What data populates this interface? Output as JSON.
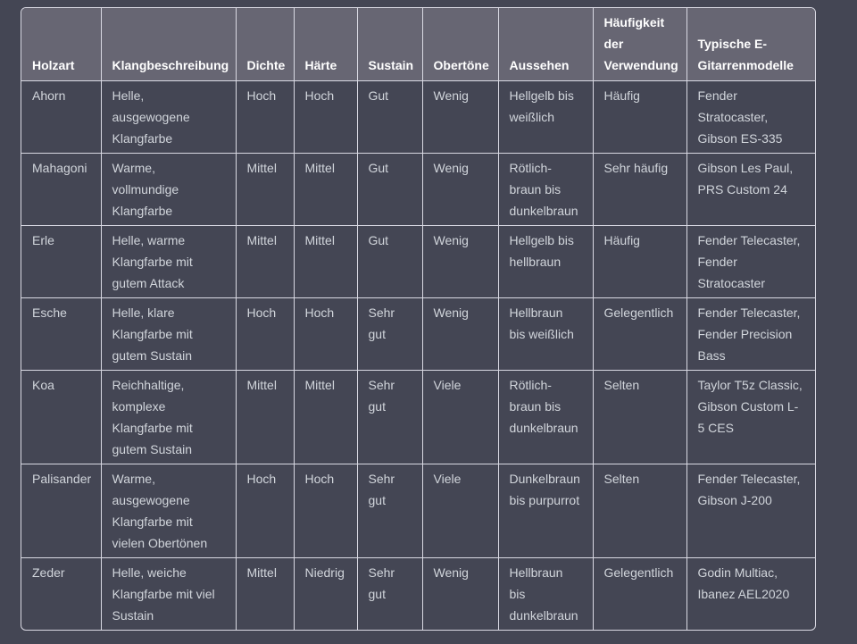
{
  "table": {
    "headers": [
      "Holzart",
      "Klangbeschreibung",
      "Dichte",
      "Härte",
      "Sustain",
      "Obertöne",
      "Aussehen",
      "Häufigkeit der Verwendung",
      "Typische E-Gitarrenmodelle"
    ],
    "rows": [
      [
        "Ahorn",
        "Helle, ausgewogene Klangfarbe",
        "Hoch",
        "Hoch",
        "Gut",
        "Wenig",
        "Hellgelb bis weißlich",
        "Häufig",
        "Fender Stratocaster, Gibson ES-335"
      ],
      [
        "Mahagoni",
        "Warme, vollmundige Klangfarbe",
        "Mittel",
        "Mittel",
        "Gut",
        "Wenig",
        "Rötlich-braun bis dunkelbraun",
        "Sehr häufig",
        "Gibson Les Paul, PRS Custom 24"
      ],
      [
        "Erle",
        "Helle, warme Klangfarbe mit gutem Attack",
        "Mittel",
        "Mittel",
        "Gut",
        "Wenig",
        "Hellgelb bis hellbraun",
        "Häufig",
        "Fender Telecaster, Fender Stratocaster"
      ],
      [
        "Esche",
        "Helle, klare Klangfarbe mit gutem Sustain",
        "Hoch",
        "Hoch",
        "Sehr gut",
        "Wenig",
        "Hellbraun bis weißlich",
        "Gelegentlich",
        "Fender Telecaster, Fender Precision Bass"
      ],
      [
        "Koa",
        "Reichhaltige, komplexe Klangfarbe mit gutem Sustain",
        "Mittel",
        "Mittel",
        "Sehr gut",
        "Viele",
        "Rötlich-braun bis dunkelbraun",
        "Selten",
        "Taylor T5z Classic, Gibson Custom L-5 CES"
      ],
      [
        "Palisander",
        "Warme, ausgewogene Klangfarbe mit vielen Obertönen",
        "Hoch",
        "Hoch",
        "Sehr gut",
        "Viele",
        "Dunkelbraun bis purpurrot",
        "Selten",
        "Fender Telecaster, Gibson J-200"
      ],
      [
        "Zeder",
        "Helle, weiche Klangfarbe mit viel Sustain",
        "Mittel",
        "Niedrig",
        "Sehr gut",
        "Wenig",
        "Hellbraun bis dunkelbraun",
        "Gelegentlich",
        "Godin Multiac, Ibanez AEL2020"
      ]
    ]
  },
  "colors": {
    "background": "#444654",
    "header": "#676673",
    "border": "#d9d9e3",
    "text": "#d1d5db"
  }
}
